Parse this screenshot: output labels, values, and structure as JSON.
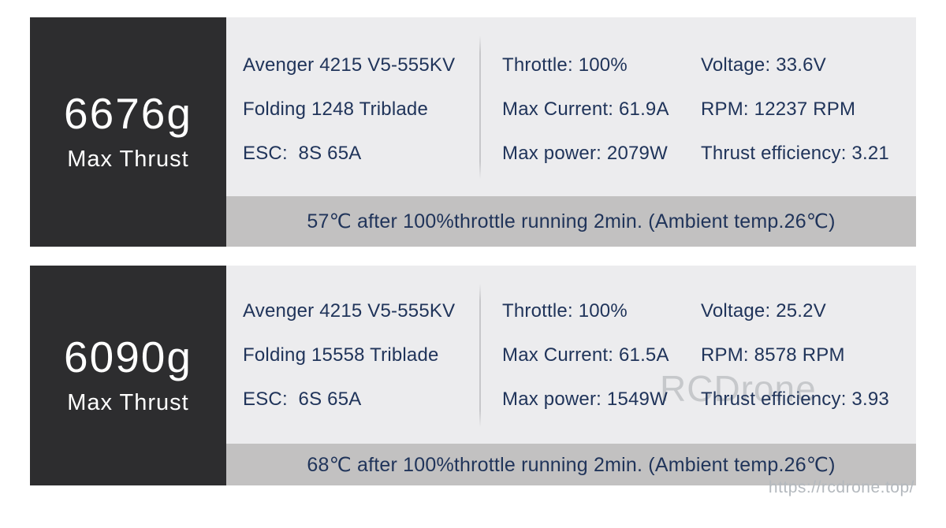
{
  "page": {
    "watermark": "RCDrone",
    "site_url": "https://rcdrone.top/"
  },
  "colors": {
    "dark_panel": "#2d2d2f",
    "light_panel": "#ececee",
    "temp_bar": "#c2c1c1",
    "text_navy": "#20345a",
    "watermark_gray": "#c6c8cb"
  },
  "cards": [
    {
      "thrust_value": "6676g",
      "thrust_label": "Max Thrust",
      "col1": [
        "Avenger 4215 V5-555KV",
        "Folding 1248 Triblade",
        "ESC:  8S 65A"
      ],
      "col2": [
        "Throttle: 100%",
        "Max Current: 61.9A",
        "Max power: 2079W"
      ],
      "col3": [
        "Voltage: 33.6V",
        "RPM: 12237 RPM",
        "Thrust efficiency: 3.21"
      ],
      "temp_note": "57℃ after 100%throttle running 2min. (Ambient temp.26℃)"
    },
    {
      "thrust_value": "6090g",
      "thrust_label": "Max Thrust",
      "col1": [
        "Avenger 4215 V5-555KV",
        "Folding 15558 Triblade",
        "ESC:  6S 65A"
      ],
      "col2": [
        "Throttle: 100%",
        "Max Current: 61.5A",
        "Max power: 1549W"
      ],
      "col3": [
        "Voltage: 25.2V",
        "RPM: 8578 RPM",
        "Thrust efficiency: 3.93"
      ],
      "temp_note": "68℃ after 100%throttle running 2min. (Ambient temp.26℃)"
    }
  ]
}
